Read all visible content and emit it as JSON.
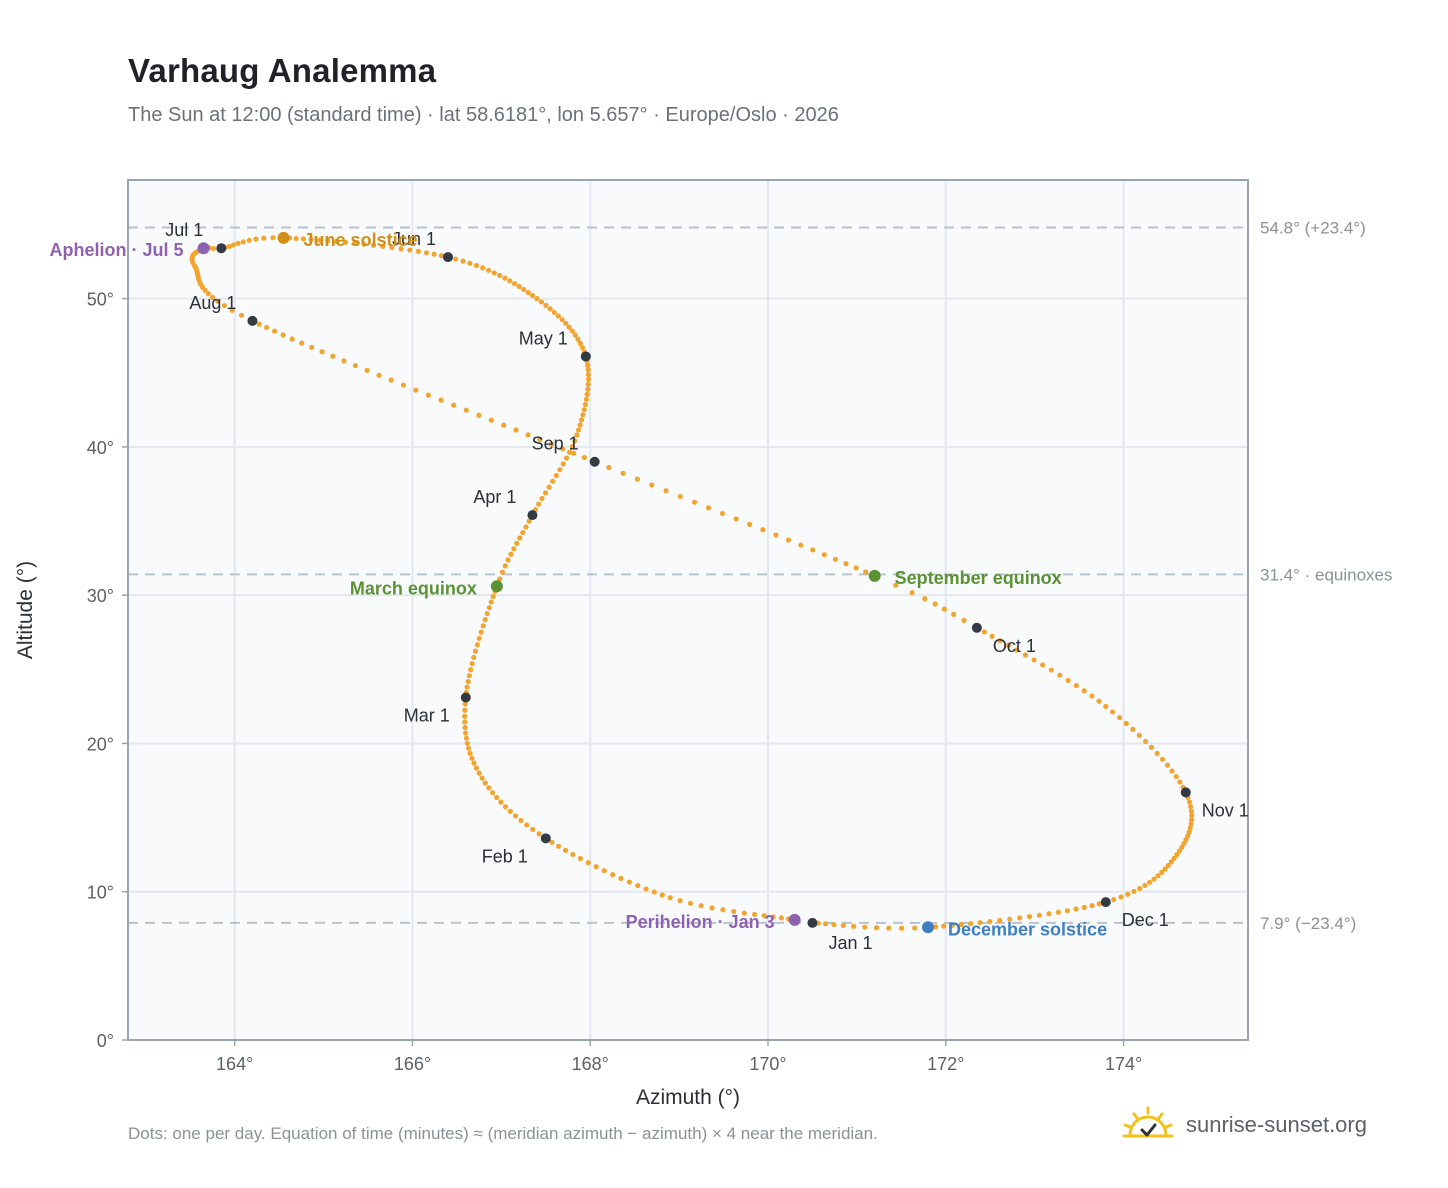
{
  "title": "Varhaug Analemma",
  "subtitle": "The Sun at 12:00 (standard time) · lat 58.6181°, lon 5.657° · Europe/Oslo · 2026",
  "footnote": "Dots: one per day. Equation of time (minutes) ≈ (meridian azimuth − azimuth) × 4 near the meridian.",
  "brand": {
    "name": "sunrise-sunset.org",
    "logo_icon": "sun-logo-icon"
  },
  "colors": {
    "curve": "#f2a52e",
    "month_marker": "#333a44",
    "equinox": "#5a9234",
    "june_solstice": "#d08f16",
    "december_solstice": "#3f7fc1",
    "apsis": "#8e62b0",
    "reference_line": "#b9c3cc",
    "plot_background": "#f8fafc"
  },
  "chart_data": {
    "type": "scatter",
    "xlabel": "Azimuth (°)",
    "ylabel": "Altitude (°)",
    "xlim": [
      162.8,
      175.4
    ],
    "ylim": [
      0,
      58
    ],
    "x_ticks": [
      164,
      166,
      168,
      170,
      172,
      174
    ],
    "x_tick_labels": [
      "164°",
      "166°",
      "168°",
      "170°",
      "172°",
      "174°"
    ],
    "y_ticks": [
      0,
      10,
      20,
      30,
      40,
      50
    ],
    "y_tick_labels": [
      "0°",
      "10°",
      "20°",
      "30°",
      "40°",
      "50°"
    ],
    "grid": true,
    "reference_lines": [
      {
        "altitude": 54.8,
        "label": "54.8° (+23.4°)"
      },
      {
        "altitude": 31.4,
        "label": "31.4° · equinoxes"
      },
      {
        "altitude": 7.9,
        "label": "7.9° (−23.4°)"
      }
    ],
    "month_points": [
      {
        "label": "Jan 1",
        "azimuth": 170.5,
        "altitude": 7.9
      },
      {
        "label": "Feb 1",
        "azimuth": 167.5,
        "altitude": 13.6
      },
      {
        "label": "Mar 1",
        "azimuth": 166.6,
        "altitude": 23.1
      },
      {
        "label": "Apr 1",
        "azimuth": 167.35,
        "altitude": 35.4
      },
      {
        "label": "May 1",
        "azimuth": 167.95,
        "altitude": 46.1
      },
      {
        "label": "Jun 1",
        "azimuth": 166.4,
        "altitude": 52.8
      },
      {
        "label": "Jul 1",
        "azimuth": 163.85,
        "altitude": 53.4
      },
      {
        "label": "Aug 1",
        "azimuth": 164.2,
        "altitude": 48.5
      },
      {
        "label": "Sep 1",
        "azimuth": 168.05,
        "altitude": 39.0
      },
      {
        "label": "Oct 1",
        "azimuth": 172.35,
        "altitude": 27.8
      },
      {
        "label": "Nov 1",
        "azimuth": 174.7,
        "altitude": 16.7
      },
      {
        "label": "Dec 1",
        "azimuth": 173.8,
        "altitude": 9.3
      }
    ],
    "events": [
      {
        "label": "March equinox",
        "azimuth": 166.95,
        "altitude": 30.6,
        "kind": "equinox"
      },
      {
        "label": "June solstice",
        "azimuth": 164.55,
        "altitude": 54.1,
        "kind": "june_solstice"
      },
      {
        "label": "September equinox",
        "azimuth": 171.2,
        "altitude": 31.3,
        "kind": "equinox"
      },
      {
        "label": "December solstice",
        "azimuth": 171.8,
        "altitude": 7.6,
        "kind": "december_solstice"
      },
      {
        "label": "Perihelion · Jan 3",
        "azimuth": 170.3,
        "altitude": 8.1,
        "kind": "apsis"
      },
      {
        "label": "Aphelion · Jul 5",
        "azimuth": 163.65,
        "altitude": 53.4,
        "kind": "apsis"
      }
    ]
  }
}
